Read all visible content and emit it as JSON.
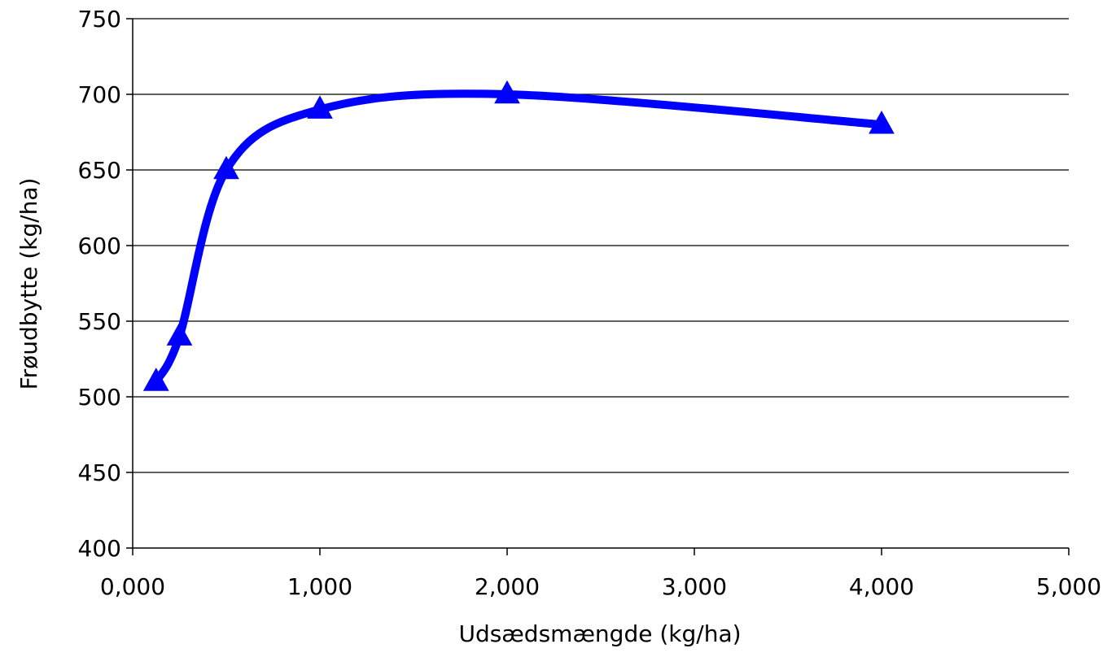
{
  "chart_data": {
    "type": "line",
    "title": "",
    "xlabel": "Udsædsmængde (kg/ha)",
    "ylabel": "Frøudbytte (kg/ha)",
    "xlim": [
      0,
      5
    ],
    "ylim": [
      400,
      750
    ],
    "x_ticks": [
      0,
      1,
      2,
      3,
      4,
      5
    ],
    "x_tick_labels": [
      "0,000",
      "1,000",
      "2,000",
      "3,000",
      "4,000",
      "5,000"
    ],
    "y_ticks": [
      400,
      450,
      500,
      550,
      600,
      650,
      700,
      750
    ],
    "y_tick_labels": [
      "400",
      "450",
      "500",
      "550",
      "600",
      "650",
      "700",
      "750"
    ],
    "grid": "horizontal",
    "legend": "none",
    "smooth": true,
    "marker": "triangle",
    "series": [
      {
        "color": "#0000ff",
        "x": [
          0.125,
          0.25,
          0.5,
          1.0,
          2.0,
          4.0
        ],
        "y": [
          510,
          540,
          650,
          690,
          700,
          680
        ]
      }
    ]
  }
}
